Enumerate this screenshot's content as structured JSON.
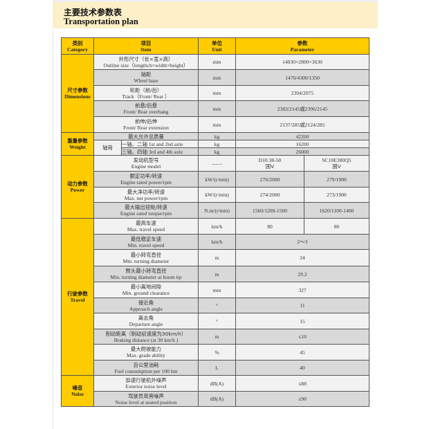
{
  "header": {
    "title_cn": "主要技术参数表",
    "title_en": "Transportation plan"
  },
  "table": {
    "columns": [
      {
        "cn": "类别",
        "en": "Category"
      },
      {
        "cn": "项目",
        "en": "Item"
      },
      {
        "cn": "单位",
        "en": "Unit"
      },
      {
        "cn": "参数",
        "en": "Parameter"
      }
    ],
    "groups": [
      {
        "cn": "尺寸参数",
        "en": "Dimensions",
        "rows": [
          {
            "cn": "外形尺寸（长×宽×高）",
            "en": "Outline size（lengthch×width×height）",
            "unit": "mm",
            "values": [
              "14030×2800×3630"
            ]
          },
          {
            "cn": "轴距",
            "en": "Wheel base",
            "unit": "mm",
            "values": [
              "1470/4300/1350"
            ]
          },
          {
            "cn": "轮距（前/后）",
            "en": "Track（Front/ Rear ）",
            "unit": "mm",
            "values": [
              "2304/2075"
            ]
          },
          {
            "cn": "前悬/后悬",
            "en": "Front/ Rear overhang",
            "unit": "mm",
            "values": [
              "2383/2145或2396/2145"
            ]
          },
          {
            "cn": "前伸/后伸",
            "en": "Front/ Rear extension",
            "unit": "mm",
            "values": [
              "2137/285或2124/285"
            ]
          }
        ]
      },
      {
        "cn": "重量参数",
        "en": "Weight",
        "rows": [
          {
            "cn": "最大允许总质量",
            "en": "",
            "unit": "kg",
            "values": [
              "42200"
            ]
          },
          {
            "sub": "轴荷",
            "cn": "一轴、二轴",
            "en": "1st and 2nd axle",
            "unit": "kg",
            "values": [
              "16200"
            ]
          },
          {
            "cn": "三轴、四轴",
            "en": "3rd and 4th axle",
            "unit": "kg",
            "values": [
              "26000"
            ]
          }
        ]
      },
      {
        "cn": "动力参数",
        "en": "Power",
        "rows": [
          {
            "cn": "发动机型号",
            "en": "Engine model",
            "unit": "——",
            "values": [
              "D10.38-50\n国Ⅴ",
              "SC10E380Q5\n国Ⅴ"
            ]
          },
          {
            "cn": "额定功率/转速",
            "en": "Engine rated power/rpm",
            "unit": "kW/(r/min)",
            "values": [
              "276/2000",
              "279/1900"
            ]
          },
          {
            "cn": "最大净功率/转速",
            "en": "Max. net power/rpm",
            "unit": "kW/(r/min)",
            "values": [
              "274/2000",
              "273/1900"
            ]
          },
          {
            "cn": "最大输出扭矩/转速",
            "en": "Engine rated torque/rpm",
            "unit": "N.m/(r/min)",
            "values": [
              "1560/1200-1500",
              "1620/1100-1400"
            ]
          }
        ]
      },
      {
        "cn": "行驶参数",
        "en": "Travel",
        "rows": [
          {
            "cn": "最高车速",
            "en": "Max. travel speed",
            "unit": "km/h",
            "values": [
              "80",
              "80"
            ]
          },
          {
            "cn": "最低稳定车速",
            "en": "Min. travel speed",
            "unit": "km/h",
            "values": [
              "2～3"
            ]
          },
          {
            "cn": "最小转弯直径",
            "en": "Min. turning diameter",
            "unit": "m",
            "values": [
              "24"
            ]
          },
          {
            "cn": "臂头最小转弯直径",
            "en": "Min. turning diameter at boom tip",
            "unit": "m",
            "values": [
              "29.2"
            ]
          },
          {
            "cn": "最小离地间隙",
            "en": "Min. ground clearance",
            "unit": "mm",
            "values": [
              "327"
            ]
          },
          {
            "cn": "接近角",
            "en": "Approach angle",
            "unit": "°",
            "values": [
              "11"
            ]
          },
          {
            "cn": "离去角",
            "en": "Departure angle",
            "unit": "°",
            "values": [
              "15"
            ]
          },
          {
            "cn": "制动距离（制动初速度为30km/h）",
            "en": "Braking distance (at 30 km/h )",
            "unit": "m",
            "values": [
              "≤10"
            ]
          },
          {
            "cn": "最大爬坡能力",
            "en": "Max. grade ability",
            "unit": "%",
            "values": [
              "45"
            ]
          },
          {
            "cn": "百公里油耗",
            "en": "Fuel consumption per 100 km",
            "unit": "L",
            "values": [
              "40"
            ]
          }
        ]
      },
      {
        "cn": "噪音",
        "en": "Noise",
        "rows": [
          {
            "cn": "加速行驶机外噪声",
            "en": "Exterior noise level",
            "unit": "dB(A)",
            "values": [
              "≤88"
            ]
          },
          {
            "cn": "驾驶员耳旁噪声",
            "en": "Noise level at seated position",
            "unit": "dB(A)",
            "values": [
              "≤90"
            ]
          }
        ]
      }
    ]
  }
}
